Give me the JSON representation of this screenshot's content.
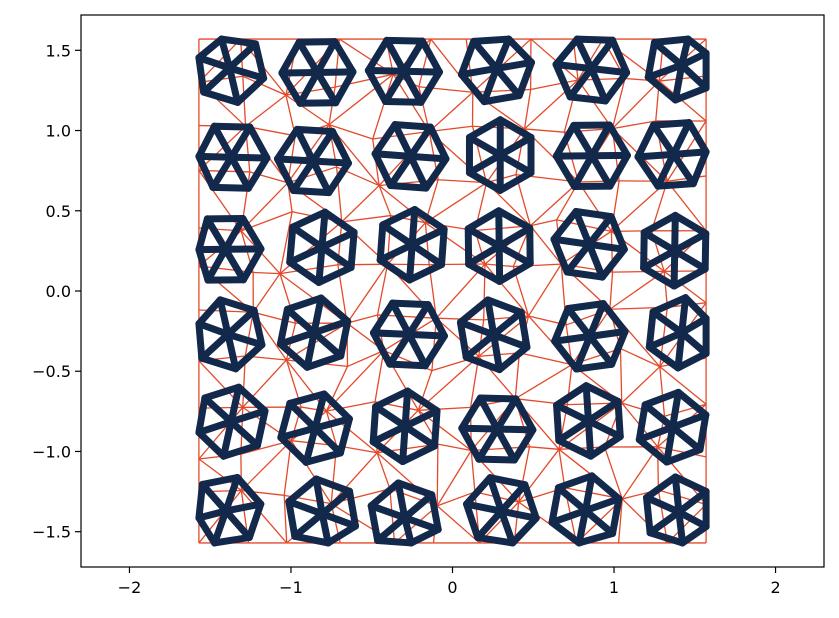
{
  "chart_data": {
    "type": "mesh",
    "title": "",
    "xlabel": "",
    "ylabel": "",
    "xlim": [
      -2.3,
      2.3
    ],
    "ylim": [
      -1.72,
      1.72
    ],
    "xticks": [
      -2,
      -1,
      0,
      1,
      2
    ],
    "yticks": [
      -1.5,
      -1.0,
      -0.5,
      0.0,
      0.5,
      1.0,
      1.5
    ],
    "xtick_labels": [
      "−2",
      "−1",
      "0",
      "1",
      "2"
    ],
    "ytick_labels": [
      "−1.5",
      "−1.0",
      "−0.5",
      "0.0",
      "0.5",
      "1.0",
      "1.5"
    ],
    "grid": false,
    "domain": {
      "x": [
        -1.57,
        1.57
      ],
      "y": [
        -1.57,
        1.57
      ]
    },
    "colors": {
      "thin_mesh": "#e34a2a",
      "thick_mesh": "#13294b"
    },
    "layers": [
      {
        "color": "#e34a2a",
        "width": "thin",
        "description": "triangulation mesh"
      },
      {
        "color": "#13294b",
        "width": "thick",
        "description": "highlighted star/wheel clusters"
      }
    ]
  }
}
